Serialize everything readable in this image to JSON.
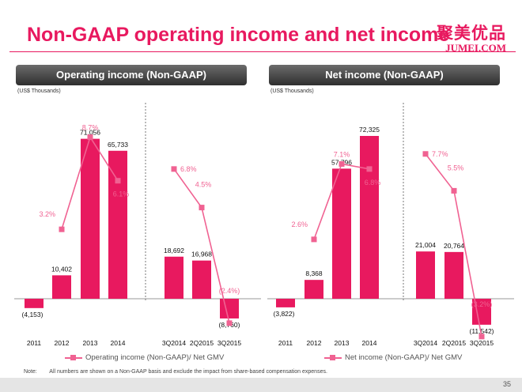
{
  "slide": {
    "title": "Non-GAAP operating income and net income",
    "logo_cn": "聚美优品",
    "logo_en": "JUMEI.COM",
    "note_label": "Note:",
    "note_text": "All numbers are shown on a Non-GAAP basis and exclude the impact from share-based compensation expenses.",
    "page_number": "35"
  },
  "colors": {
    "bar": "#e8195f",
    "line": "#f06292",
    "pct_label": "#f06292",
    "brand": "#e8195f"
  },
  "chart_data": [
    {
      "type": "bar",
      "title": "Operating income (Non-GAAP)",
      "units": "(US$ Thousands)",
      "legend": "Operating income (Non-GAAP)/ Net GMV",
      "annual": {
        "categories": [
          "2011",
          "2012",
          "2013",
          "2014"
        ],
        "values": [
          -4153,
          10402,
          71056,
          65733
        ],
        "value_labels": [
          "(4,153)",
          "10,402",
          "71,056",
          "65,733"
        ],
        "margin": [
          null,
          3.2,
          8.7,
          6.1
        ],
        "margin_labels": [
          "",
          "3.2%",
          "8.7%",
          "6.1%"
        ]
      },
      "quarterly": {
        "categories": [
          "3Q2014",
          "2Q2015",
          "3Q2015"
        ],
        "values": [
          18692,
          16968,
          -8760
        ],
        "value_labels": [
          "18,692",
          "16,968",
          "(8,760)"
        ],
        "margin": [
          6.8,
          4.5,
          -2.4
        ],
        "margin_labels": [
          "6.8%",
          "4.5%",
          "(2.4%)"
        ]
      }
    },
    {
      "type": "bar",
      "title": "Net income (Non-GAAP)",
      "units": "(US$ Thousands)",
      "legend": "Net income (Non-GAAP)/ Net GMV",
      "annual": {
        "categories": [
          "2011",
          "2012",
          "2013",
          "2014"
        ],
        "values": [
          -3822,
          8368,
          57796,
          72325
        ],
        "value_labels": [
          "(3,822)",
          "8,368",
          "57,796",
          "72,325"
        ],
        "margin": [
          null,
          2.6,
          7.1,
          6.8
        ],
        "margin_labels": [
          "",
          "2.6%",
          "7.1%",
          "6.8%"
        ]
      },
      "quarterly": {
        "categories": [
          "3Q2014",
          "2Q2015",
          "3Q2015"
        ],
        "values": [
          21004,
          20764,
          -11542
        ],
        "value_labels": [
          "21,004",
          "20,764",
          "(11,542)"
        ],
        "margin": [
          7.7,
          5.5,
          -3.2
        ],
        "margin_labels": [
          "7.7%",
          "5.5%",
          "(3.2%)"
        ]
      }
    }
  ]
}
